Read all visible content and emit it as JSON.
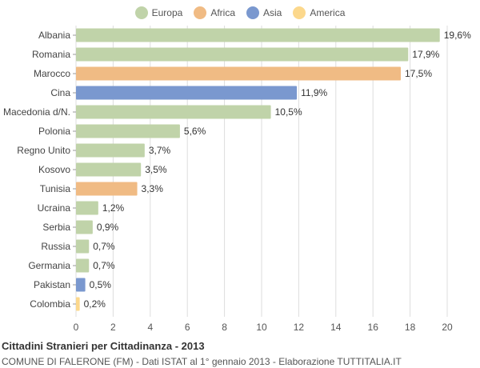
{
  "chart_data": {
    "type": "bar",
    "orientation": "horizontal",
    "title": "Cittadini Stranieri per Cittadinanza - 2013",
    "subtitle": "COMUNE DI FALERONE (FM) - Dati ISTAT al 1° gennaio 2013 - Elaborazione TUTTITALIA.IT",
    "xlim": [
      0,
      20
    ],
    "xticks": [
      0,
      2,
      4,
      6,
      8,
      10,
      12,
      14,
      16,
      18,
      20
    ],
    "grid": true,
    "legend_position": "top-center",
    "legend": [
      {
        "name": "Europa",
        "color": "#c0d3a9"
      },
      {
        "name": "Africa",
        "color": "#f0bb84"
      },
      {
        "name": "Asia",
        "color": "#7a98cf"
      },
      {
        "name": "America",
        "color": "#fcd88c"
      }
    ],
    "bars": [
      {
        "category": "Albania",
        "value": 19.6,
        "label": "19,6%",
        "group": "Europa"
      },
      {
        "category": "Romania",
        "value": 17.9,
        "label": "17,9%",
        "group": "Europa"
      },
      {
        "category": "Marocco",
        "value": 17.5,
        "label": "17,5%",
        "group": "Africa"
      },
      {
        "category": "Cina",
        "value": 11.9,
        "label": "11,9%",
        "group": "Asia"
      },
      {
        "category": "Macedonia d/N.",
        "value": 10.5,
        "label": "10,5%",
        "group": "Europa"
      },
      {
        "category": "Polonia",
        "value": 5.6,
        "label": "5,6%",
        "group": "Europa"
      },
      {
        "category": "Regno Unito",
        "value": 3.7,
        "label": "3,7%",
        "group": "Europa"
      },
      {
        "category": "Kosovo",
        "value": 3.5,
        "label": "3,5%",
        "group": "Europa"
      },
      {
        "category": "Tunisia",
        "value": 3.3,
        "label": "3,3%",
        "group": "Africa"
      },
      {
        "category": "Ucraina",
        "value": 1.2,
        "label": "1,2%",
        "group": "Europa"
      },
      {
        "category": "Serbia",
        "value": 0.9,
        "label": "0,9%",
        "group": "Europa"
      },
      {
        "category": "Russia",
        "value": 0.7,
        "label": "0,7%",
        "group": "Europa"
      },
      {
        "category": "Germania",
        "value": 0.7,
        "label": "0,7%",
        "group": "Europa"
      },
      {
        "category": "Pakistan",
        "value": 0.5,
        "label": "0,5%",
        "group": "Asia"
      },
      {
        "category": "Colombia",
        "value": 0.2,
        "label": "0,2%",
        "group": "America"
      }
    ]
  }
}
